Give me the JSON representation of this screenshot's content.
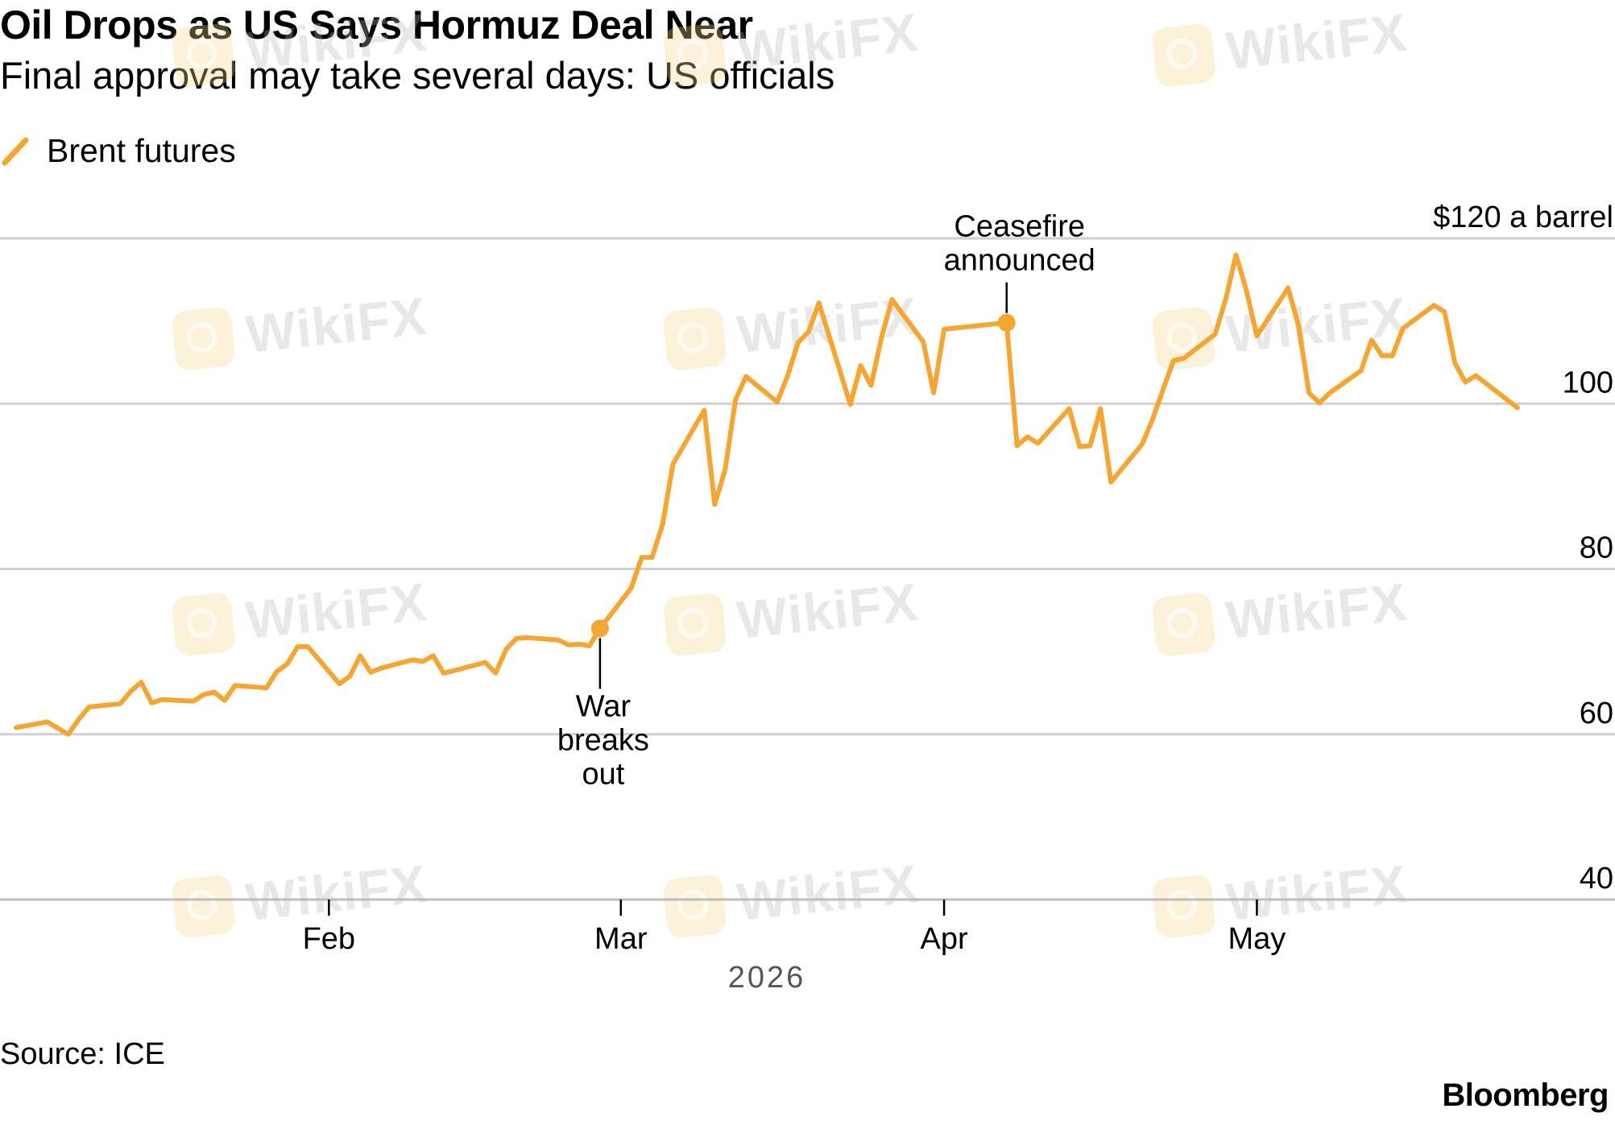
{
  "header": {
    "title": "Oil Drops as US Says Hormuz Deal Near",
    "subtitle": "Final approval may take several days: US officials"
  },
  "footer": {
    "source": "Source: ICE",
    "brand": "Bloomberg"
  },
  "watermark": {
    "text": "WikiFX"
  },
  "chart_data": {
    "type": "line",
    "title": "Oil Drops as US Says Hormuz Deal Near",
    "subtitle": "Final approval may take several days: US officials",
    "xlabel": "2026",
    "ylabel": "",
    "ylim": [
      40,
      120
    ],
    "xlim": [
      "2026-01-02",
      "2026-05-26"
    ],
    "grid": true,
    "legend_placement": "top-left",
    "y_ticks": [
      {
        "value": 120,
        "label": "$120 a barrel"
      },
      {
        "value": 100,
        "label": "100"
      },
      {
        "value": 80,
        "label": "80"
      },
      {
        "value": 60,
        "label": "60"
      },
      {
        "value": 40,
        "label": "40"
      }
    ],
    "x_ticks": [
      {
        "date": "2026-02-01",
        "label": "Feb"
      },
      {
        "date": "2026-03-01",
        "label": "Mar"
      },
      {
        "date": "2026-04-01",
        "label": "Apr"
      },
      {
        "date": "2026-05-01",
        "label": "May"
      }
    ],
    "series": [
      {
        "name": "Brent futures",
        "color": "#f5a532",
        "points": [
          [
            "2026-01-02",
            60.8
          ],
          [
            "2026-01-05",
            61.5
          ],
          [
            "2026-01-07",
            60.0
          ],
          [
            "2026-01-08",
            61.8
          ],
          [
            "2026-01-09",
            63.3
          ],
          [
            "2026-01-12",
            63.7
          ],
          [
            "2026-01-13",
            65.2
          ],
          [
            "2026-01-14",
            66.3
          ],
          [
            "2026-01-15",
            63.8
          ],
          [
            "2026-01-16",
            64.2
          ],
          [
            "2026-01-19",
            64.0
          ],
          [
            "2026-01-20",
            64.8
          ],
          [
            "2026-01-21",
            65.1
          ],
          [
            "2026-01-22",
            64.1
          ],
          [
            "2026-01-23",
            65.9
          ],
          [
            "2026-01-26",
            65.6
          ],
          [
            "2026-01-27",
            67.6
          ],
          [
            "2026-01-28",
            68.5
          ],
          [
            "2026-01-29",
            70.6
          ],
          [
            "2026-01-30",
            70.6
          ],
          [
            "2026-02-02",
            66.1
          ],
          [
            "2026-02-03",
            67.0
          ],
          [
            "2026-02-04",
            69.5
          ],
          [
            "2026-02-05",
            67.5
          ],
          [
            "2026-02-06",
            68.0
          ],
          [
            "2026-02-09",
            69.0
          ],
          [
            "2026-02-10",
            68.8
          ],
          [
            "2026-02-11",
            69.5
          ],
          [
            "2026-02-12",
            67.4
          ],
          [
            "2026-02-13",
            67.7
          ],
          [
            "2026-02-16",
            68.7
          ],
          [
            "2026-02-17",
            67.4
          ],
          [
            "2026-02-18",
            70.3
          ],
          [
            "2026-02-19",
            71.6
          ],
          [
            "2026-02-20",
            71.7
          ],
          [
            "2026-02-23",
            71.4
          ],
          [
            "2026-02-24",
            70.8
          ],
          [
            "2026-02-25",
            70.9
          ],
          [
            "2026-02-26",
            70.7
          ],
          [
            "2026-02-27",
            72.8
          ],
          [
            "2026-03-02",
            77.7
          ],
          [
            "2026-03-03",
            81.4
          ],
          [
            "2026-03-04",
            81.4
          ],
          [
            "2026-03-05",
            85.4
          ],
          [
            "2026-03-06",
            92.7
          ],
          [
            "2026-03-09",
            99.2
          ],
          [
            "2026-03-10",
            87.8
          ],
          [
            "2026-03-11",
            92.0
          ],
          [
            "2026-03-12",
            100.5
          ],
          [
            "2026-03-13",
            103.3
          ],
          [
            "2026-03-16",
            100.2
          ],
          [
            "2026-03-17",
            103.4
          ],
          [
            "2026-03-18",
            107.4
          ],
          [
            "2026-03-19",
            108.7
          ],
          [
            "2026-03-20",
            112.2
          ],
          [
            "2026-03-23",
            99.9
          ],
          [
            "2026-03-24",
            104.6
          ],
          [
            "2026-03-25",
            102.2
          ],
          [
            "2026-03-26",
            108.0
          ],
          [
            "2026-03-27",
            112.6
          ],
          [
            "2026-03-30",
            107.5
          ],
          [
            "2026-03-31",
            101.3
          ],
          [
            "2026-04-01",
            109.0
          ],
          [
            "2026-04-07",
            109.8
          ],
          [
            "2026-04-08",
            94.9
          ],
          [
            "2026-04-09",
            96.0
          ],
          [
            "2026-04-10",
            95.2
          ],
          [
            "2026-04-13",
            99.4
          ],
          [
            "2026-04-14",
            94.8
          ],
          [
            "2026-04-15",
            94.9
          ],
          [
            "2026-04-16",
            99.4
          ],
          [
            "2026-04-17",
            90.5
          ],
          [
            "2026-04-20",
            95.1
          ],
          [
            "2026-04-21",
            98.1
          ],
          [
            "2026-04-22",
            101.7
          ],
          [
            "2026-04-23",
            105.2
          ],
          [
            "2026-04-24",
            105.5
          ],
          [
            "2026-04-27",
            108.4
          ],
          [
            "2026-04-28",
            112.6
          ],
          [
            "2026-04-29",
            118.0
          ],
          [
            "2026-04-30",
            113.7
          ],
          [
            "2026-05-01",
            108.2
          ],
          [
            "2026-05-04",
            114.0
          ],
          [
            "2026-05-05",
            109.4
          ],
          [
            "2026-05-06",
            101.3
          ],
          [
            "2026-05-07",
            100.1
          ],
          [
            "2026-05-08",
            101.3
          ],
          [
            "2026-05-11",
            104.0
          ],
          [
            "2026-05-12",
            107.7
          ],
          [
            "2026-05-13",
            105.8
          ],
          [
            "2026-05-14",
            105.8
          ],
          [
            "2026-05-15",
            109.1
          ],
          [
            "2026-05-18",
            111.9
          ],
          [
            "2026-05-19",
            111.1
          ],
          [
            "2026-05-20",
            104.9
          ],
          [
            "2026-05-21",
            102.6
          ],
          [
            "2026-05-22",
            103.4
          ],
          [
            "2026-05-26",
            99.5
          ]
        ]
      }
    ],
    "annotations": [
      {
        "date": "2026-02-27",
        "value": 72.8,
        "lines": [
          "War",
          "breaks",
          "out"
        ],
        "position": "below"
      },
      {
        "date": "2026-04-07",
        "value": 109.8,
        "lines": [
          "Ceasefire",
          "announced"
        ],
        "position": "above"
      }
    ]
  }
}
